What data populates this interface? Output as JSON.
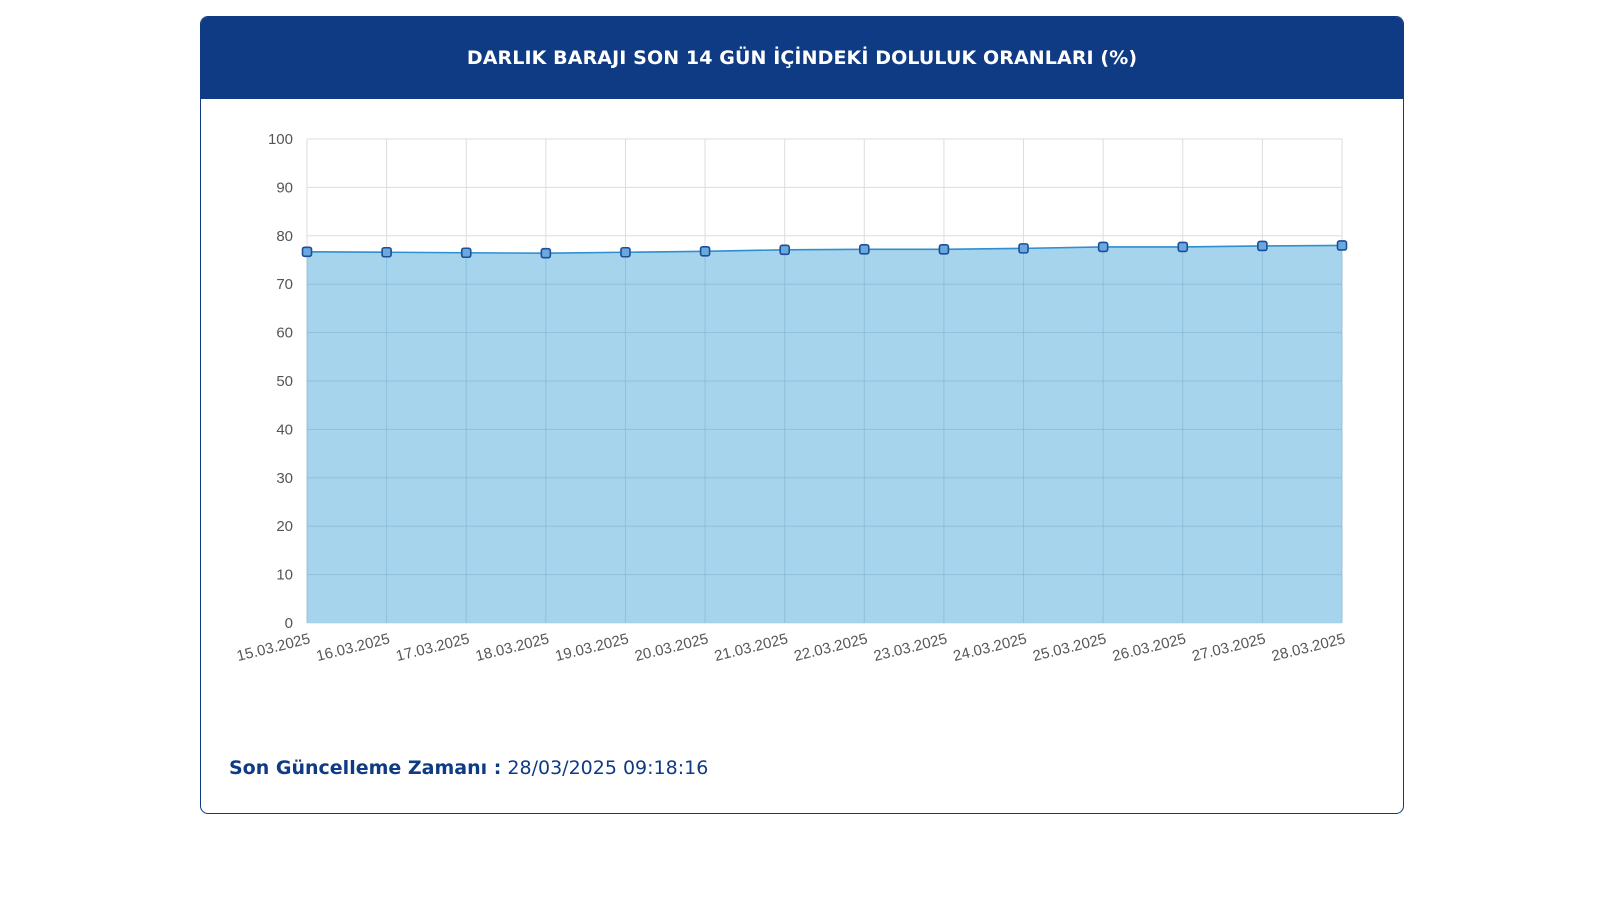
{
  "header": {
    "title": "DARLIK BARAJI SON 14 GÜN İÇİNDEKİ DOLULUK ORANLARI (%)"
  },
  "footer": {
    "label": "Son Güncelleme Zamanı :",
    "value": "28/03/2025 09:18:16"
  },
  "colors": {
    "header_bg": "#0f3a84",
    "area_fill": "#9fd0ec",
    "line": "#2f8fd0",
    "marker_stroke": "#1f4e96",
    "marker_fill": "#6aa9e0",
    "grid": "#dddddd"
  },
  "chart_data": {
    "type": "area",
    "categories": [
      "15.03.2025",
      "16.03.2025",
      "17.03.2025",
      "18.03.2025",
      "19.03.2025",
      "20.03.2025",
      "21.03.2025",
      "22.03.2025",
      "23.03.2025",
      "24.03.2025",
      "25.03.2025",
      "26.03.2025",
      "27.03.2025",
      "28.03.2025"
    ],
    "series": [
      {
        "values": [
          76.7,
          76.6,
          76.5,
          76.4,
          76.6,
          76.8,
          77.1,
          77.2,
          77.2,
          77.4,
          77.7,
          77.7,
          77.9,
          78.0
        ]
      }
    ],
    "ylim": [
      0,
      100
    ],
    "yticks": [
      0,
      10,
      20,
      30,
      40,
      50,
      60,
      70,
      80,
      90,
      100
    ],
    "grid": true,
    "legend": "none"
  }
}
